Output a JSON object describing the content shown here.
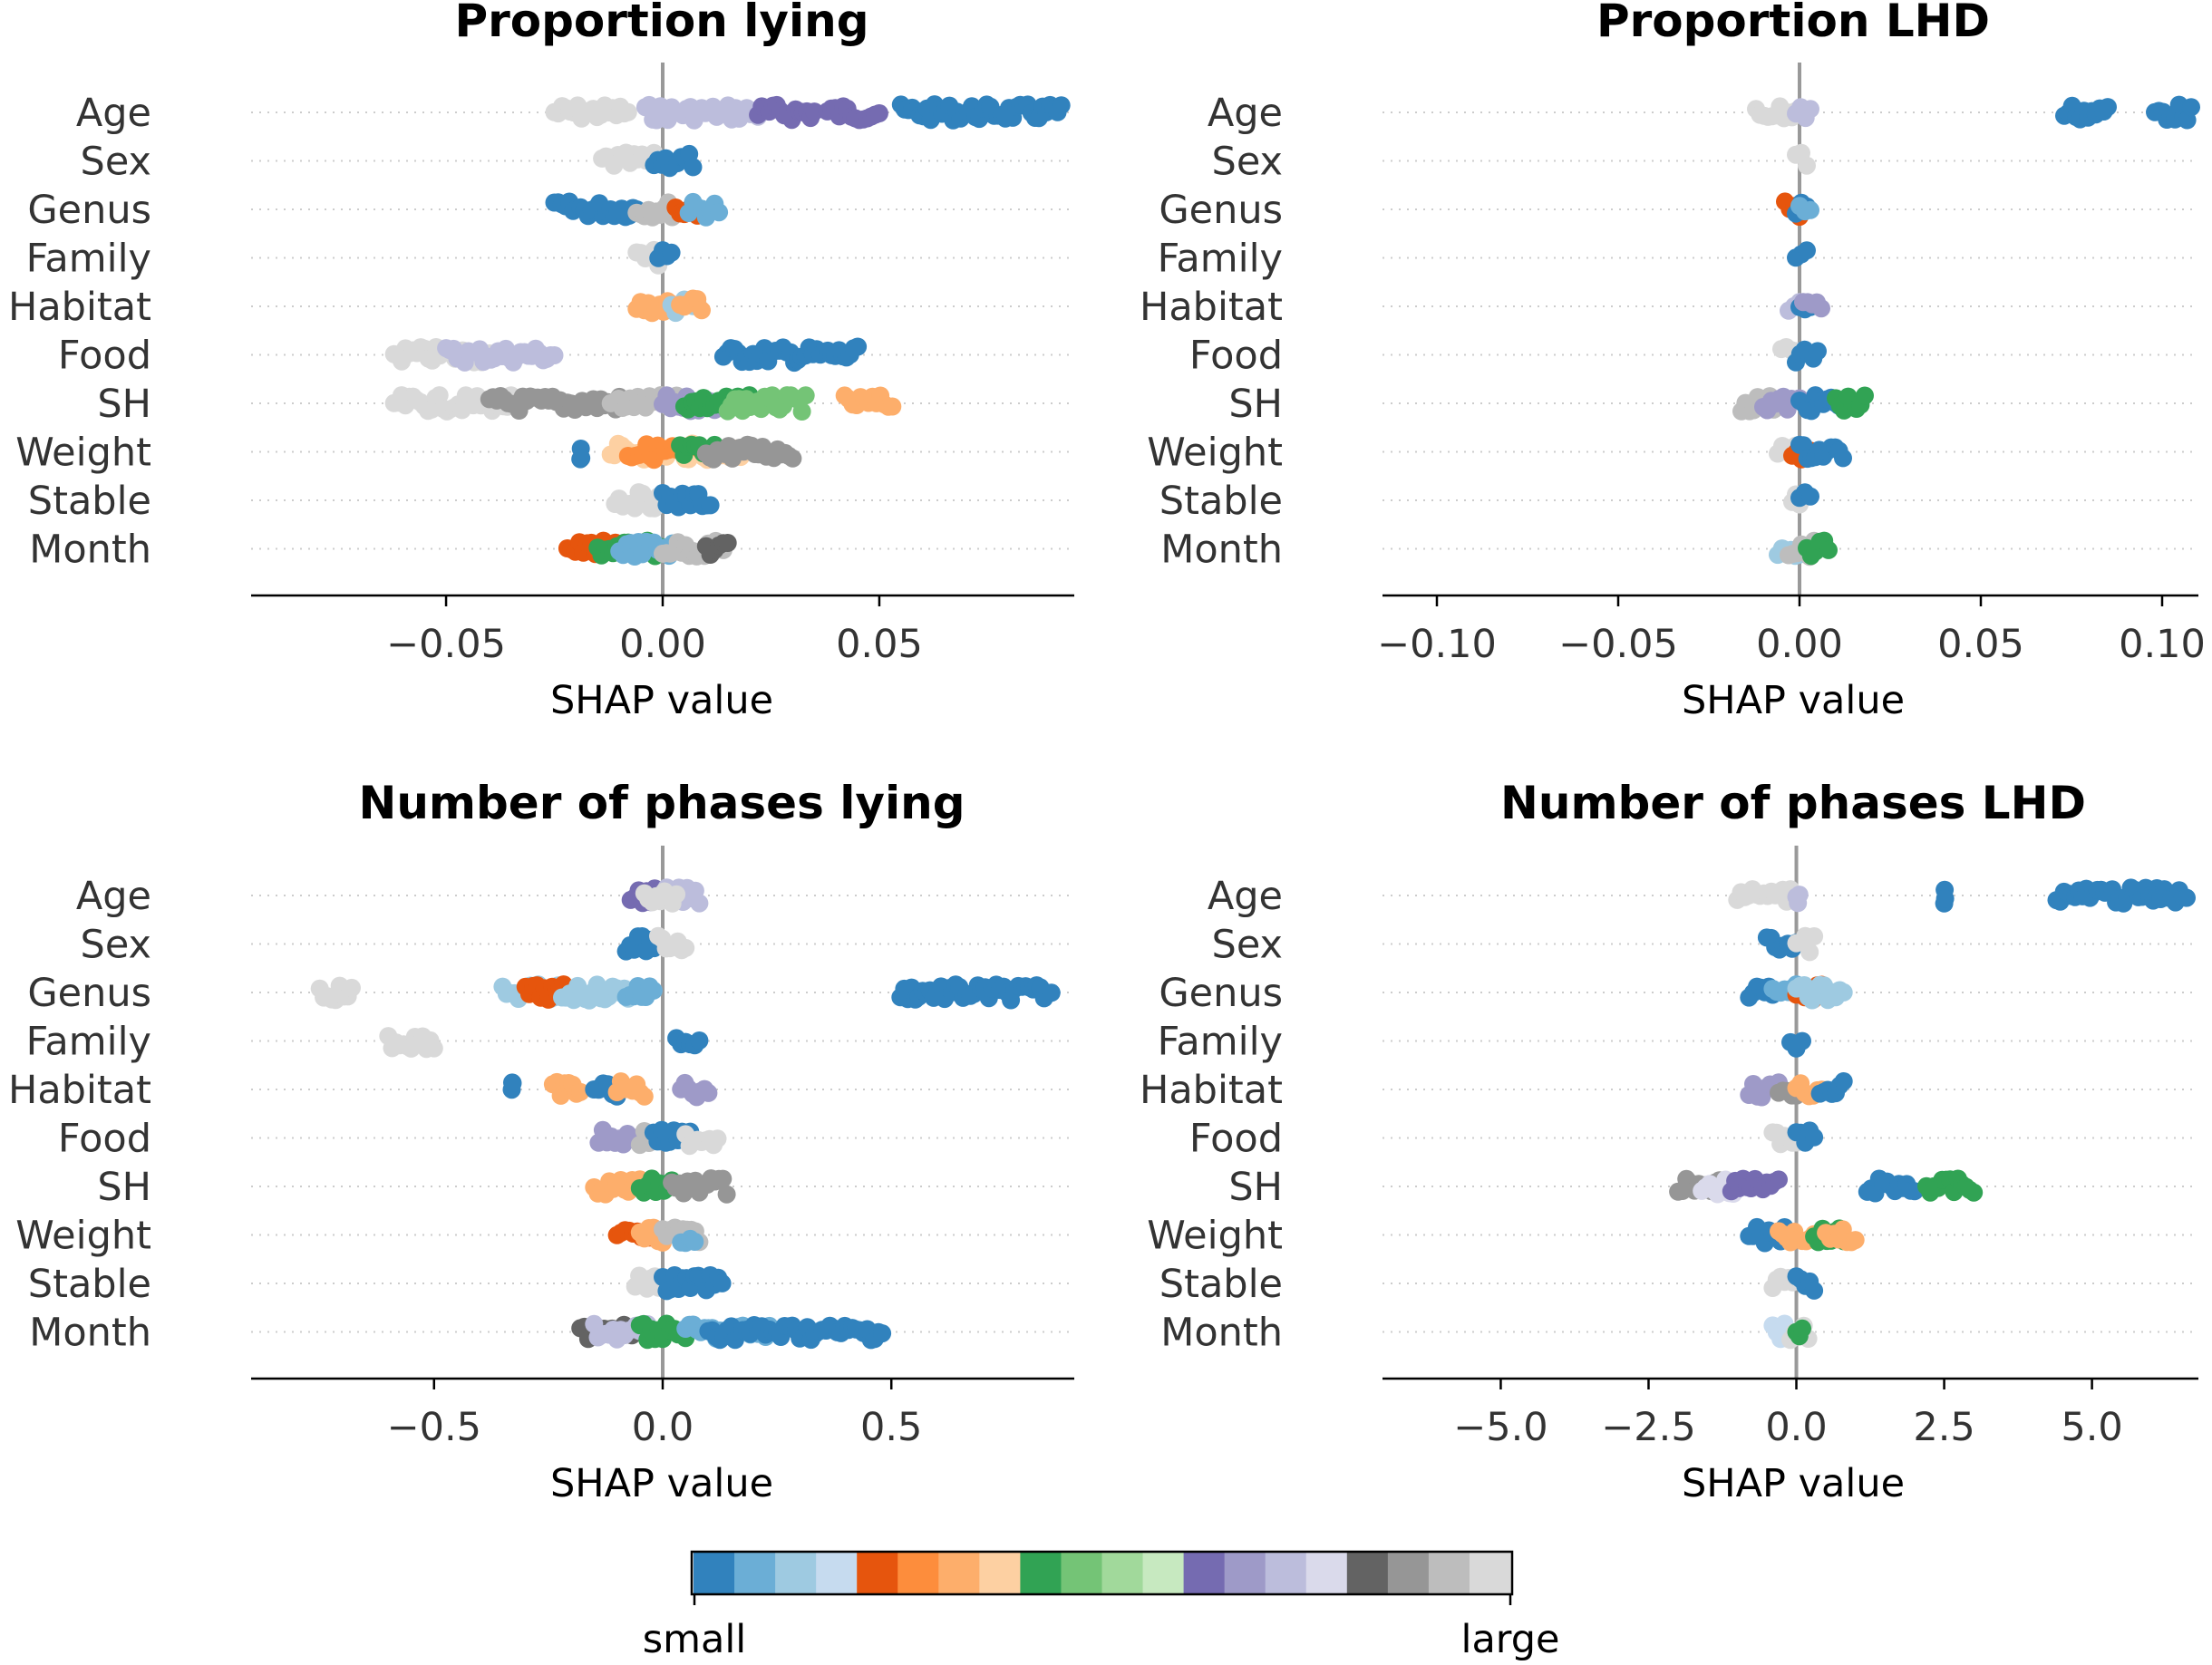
{
  "chart_data": [
    {
      "type": "scatter",
      "title": "Proportion lying",
      "xlabel": "SHAP value",
      "xlim": [
        -0.095,
        0.095
      ],
      "xticks": [
        -0.05,
        0.0,
        0.05
      ],
      "xtick_labels": [
        "−0.05",
        "0.00",
        "0.05"
      ],
      "features": [
        "Age",
        "Sex",
        "Genus",
        "Family",
        "Habitat",
        "Food",
        "SH",
        "Weight",
        "Stable",
        "Month"
      ],
      "series": [
        {
          "feature": "Age",
          "clusters": [
            [
              -0.025,
              -0.008,
              19
            ],
            [
              -0.004,
              0.022,
              14
            ],
            [
              0.022,
              0.035,
              12
            ],
            [
              0.038,
              0.05,
              12
            ],
            [
              0.055,
              0.092,
              0
            ]
          ]
        },
        {
          "feature": "Sex",
          "clusters": [
            [
              -0.014,
              -0.002,
              19
            ],
            [
              -0.002,
              0.007,
              0
            ]
          ]
        },
        {
          "feature": "Genus",
          "clusters": [
            [
              -0.025,
              -0.006,
              0
            ],
            [
              -0.006,
              0.004,
              18
            ],
            [
              0.003,
              0.008,
              4
            ],
            [
              0.006,
              0.013,
              1
            ]
          ]
        },
        {
          "feature": "Family",
          "clusters": [
            [
              -0.006,
              -0.001,
              19
            ],
            [
              -0.001,
              0.002,
              0
            ]
          ]
        },
        {
          "feature": "Habitat",
          "clusters": [
            [
              -0.006,
              0.002,
              6
            ],
            [
              0.002,
              0.008,
              2
            ],
            [
              0.004,
              0.009,
              6
            ]
          ]
        },
        {
          "feature": "Food",
          "clusters": [
            [
              -0.062,
              -0.04,
              19
            ],
            [
              -0.05,
              -0.025,
              14
            ],
            [
              0.014,
              0.045,
              0
            ]
          ]
        },
        {
          "feature": "SH",
          "clusters": [
            [
              -0.062,
              -0.035,
              19
            ],
            [
              -0.04,
              -0.01,
              17
            ],
            [
              -0.012,
              0.005,
              18
            ],
            [
              0.0,
              0.012,
              13
            ],
            [
              0.005,
              0.02,
              8
            ],
            [
              0.015,
              0.033,
              9
            ],
            [
              0.042,
              0.053,
              6
            ]
          ]
        },
        {
          "feature": "Weight",
          "clusters": [
            [
              -0.019,
              -0.019,
              0
            ],
            [
              -0.012,
              0.018,
              7
            ],
            [
              -0.008,
              0.01,
              5
            ],
            [
              0.004,
              0.012,
              8
            ],
            [
              0.01,
              0.03,
              17
            ]
          ]
        },
        {
          "feature": "Stable",
          "clusters": [
            [
              -0.011,
              -0.001,
              19
            ],
            [
              0.0,
              0.011,
              0
            ]
          ]
        },
        {
          "feature": "Month",
          "clusters": [
            [
              -0.022,
              -0.01,
              4
            ],
            [
              -0.015,
              0.0,
              8
            ],
            [
              -0.01,
              0.005,
              1
            ],
            [
              0.0,
              0.014,
              18
            ],
            [
              0.01,
              0.015,
              16
            ]
          ]
        }
      ]
    },
    {
      "type": "scatter",
      "title": "Proportion LHD",
      "xlabel": "SHAP value",
      "xlim": [
        -0.115,
        0.11
      ],
      "xticks": [
        -0.1,
        -0.05,
        0.0,
        0.05,
        0.1
      ],
      "xtick_labels": [
        "−0.10",
        "−0.05",
        "0.00",
        "0.05",
        "0.10"
      ],
      "features": [
        "Age",
        "Sex",
        "Genus",
        "Family",
        "Habitat",
        "Food",
        "SH",
        "Weight",
        "Stable",
        "Month"
      ],
      "series": [
        {
          "feature": "Age",
          "clusters": [
            [
              -0.012,
              -0.001,
              19
            ],
            [
              -0.001,
              0.003,
              14
            ],
            [
              0.073,
              0.085,
              0
            ],
            [
              0.098,
              0.108,
              0
            ]
          ]
        },
        {
          "feature": "Sex",
          "clusters": [
            [
              -0.001,
              0.002,
              19
            ]
          ]
        },
        {
          "feature": "Genus",
          "clusters": [
            [
              -0.004,
              0.0,
              4
            ],
            [
              -0.001,
              0.002,
              0
            ],
            [
              0.0,
              0.003,
              1
            ]
          ]
        },
        {
          "feature": "Family",
          "clusters": [
            [
              -0.001,
              0.002,
              0
            ]
          ]
        },
        {
          "feature": "Habitat",
          "clusters": [
            [
              -0.003,
              0.0,
              14
            ],
            [
              0.0,
              0.003,
              0
            ],
            [
              0.001,
              0.006,
              13
            ]
          ]
        },
        {
          "feature": "Food",
          "clusters": [
            [
              -0.005,
              -0.001,
              19
            ],
            [
              -0.001,
              0.005,
              0
            ]
          ]
        },
        {
          "feature": "SH",
          "clusters": [
            [
              -0.016,
              -0.006,
              18
            ],
            [
              -0.01,
              0.0,
              13
            ],
            [
              0.0,
              0.012,
              0
            ],
            [
              0.01,
              0.018,
              8
            ]
          ]
        },
        {
          "feature": "Weight",
          "clusters": [
            [
              -0.006,
              -0.001,
              19
            ],
            [
              -0.002,
              0.003,
              4
            ],
            [
              0.0,
              0.012,
              0
            ]
          ]
        },
        {
          "feature": "Stable",
          "clusters": [
            [
              -0.002,
              0.0,
              19
            ],
            [
              0.0,
              0.003,
              0
            ]
          ]
        },
        {
          "feature": "Month",
          "clusters": [
            [
              -0.006,
              0.0,
              2
            ],
            [
              -0.003,
              0.004,
              18
            ],
            [
              0.002,
              0.008,
              8
            ]
          ]
        }
      ]
    },
    {
      "type": "scatter",
      "title": "Number of phases lying",
      "xlabel": "SHAP value",
      "xlim": [
        -0.9,
        0.9
      ],
      "xticks": [
        -0.5,
        0.0,
        0.5
      ],
      "xtick_labels": [
        "−0.5",
        "0.0",
        "0.5"
      ],
      "features": [
        "Age",
        "Sex",
        "Genus",
        "Family",
        "Habitat",
        "Food",
        "SH",
        "Weight",
        "Stable",
        "Month"
      ],
      "series": [
        {
          "feature": "Age",
          "clusters": [
            [
              -0.07,
              0.0,
              12
            ],
            [
              0.0,
              0.08,
              14
            ],
            [
              -0.04,
              0.03,
              19
            ]
          ]
        },
        {
          "feature": "Sex",
          "clusters": [
            [
              -0.08,
              -0.01,
              0
            ],
            [
              -0.01,
              0.05,
              19
            ]
          ]
        },
        {
          "feature": "Genus",
          "clusters": [
            [
              -0.75,
              -0.68,
              19
            ],
            [
              -0.35,
              -0.22,
              2
            ],
            [
              -0.3,
              -0.2,
              4
            ],
            [
              -0.22,
              -0.05,
              2
            ],
            [
              -0.08,
              -0.02,
              1
            ],
            [
              0.52,
              0.85,
              0
            ]
          ]
        },
        {
          "feature": "Family",
          "clusters": [
            [
              -0.6,
              -0.5,
              19
            ],
            [
              0.03,
              0.08,
              0
            ]
          ]
        },
        {
          "feature": "Habitat",
          "clusters": [
            [
              -0.33,
              -0.33,
              0
            ],
            [
              -0.24,
              -0.18,
              6
            ],
            [
              -0.15,
              -0.1,
              0
            ],
            [
              -0.1,
              -0.04,
              6
            ],
            [
              0.04,
              0.1,
              13
            ]
          ]
        },
        {
          "feature": "Food",
          "clusters": [
            [
              -0.14,
              -0.05,
              13
            ],
            [
              -0.05,
              0.0,
              18
            ],
            [
              -0.02,
              0.06,
              0
            ],
            [
              0.05,
              0.12,
              19
            ]
          ]
        },
        {
          "feature": "SH",
          "clusters": [
            [
              -0.15,
              -0.05,
              6
            ],
            [
              -0.05,
              0.02,
              8
            ],
            [
              0.02,
              0.14,
              17
            ]
          ]
        },
        {
          "feature": "Weight",
          "clusters": [
            [
              -0.1,
              -0.02,
              4
            ],
            [
              -0.05,
              0.0,
              6
            ],
            [
              0.0,
              0.08,
              18
            ],
            [
              0.04,
              0.07,
              1
            ]
          ]
        },
        {
          "feature": "Stable",
          "clusters": [
            [
              -0.06,
              0.0,
              19
            ],
            [
              0.0,
              0.13,
              0
            ]
          ]
        },
        {
          "feature": "Month",
          "clusters": [
            [
              -0.18,
              -0.05,
              16
            ],
            [
              -0.15,
              0.0,
              14
            ],
            [
              -0.05,
              0.05,
              8
            ],
            [
              0.05,
              0.25,
              1
            ],
            [
              0.1,
              0.3,
              0
            ],
            [
              0.3,
              0.48,
              0
            ]
          ]
        }
      ]
    },
    {
      "type": "scatter",
      "title": "Number of phases LHD",
      "xlabel": "SHAP value",
      "xlim": [
        -7.0,
        6.8
      ],
      "xticks": [
        -5.0,
        -2.5,
        0.0,
        2.5,
        5.0
      ],
      "xtick_labels": [
        "−5.0",
        "−2.5",
        "0.0",
        "2.5",
        "5.0"
      ],
      "features": [
        "Age",
        "Sex",
        "Genus",
        "Family",
        "Habitat",
        "Food",
        "SH",
        "Weight",
        "Stable",
        "Month"
      ],
      "series": [
        {
          "feature": "Age",
          "clusters": [
            [
              -1.0,
              -0.1,
              19
            ],
            [
              0.0,
              0.05,
              14
            ],
            [
              2.5,
              2.5,
              0
            ],
            [
              4.4,
              6.6,
              0
            ]
          ]
        },
        {
          "feature": "Sex",
          "clusters": [
            [
              -0.5,
              0.0,
              0
            ],
            [
              0.0,
              0.3,
              19
            ]
          ]
        },
        {
          "feature": "Genus",
          "clusters": [
            [
              -0.8,
              -0.4,
              0
            ],
            [
              -0.4,
              0.0,
              1
            ],
            [
              0.0,
              0.5,
              4
            ],
            [
              0.0,
              0.8,
              2
            ]
          ]
        },
        {
          "feature": "Family",
          "clusters": [
            [
              -0.1,
              0.1,
              0
            ]
          ]
        },
        {
          "feature": "Habitat",
          "clusters": [
            [
              -0.8,
              -0.3,
              13
            ],
            [
              -0.3,
              0.0,
              17
            ],
            [
              0.0,
              0.5,
              6
            ],
            [
              0.4,
              0.8,
              0
            ]
          ]
        },
        {
          "feature": "Food",
          "clusters": [
            [
              -0.4,
              0.0,
              19
            ],
            [
              0.0,
              0.3,
              0
            ]
          ]
        },
        {
          "feature": "SH",
          "clusters": [
            [
              -2.0,
              -1.3,
              17
            ],
            [
              -1.6,
              -1.0,
              15
            ],
            [
              -1.1,
              -0.3,
              12
            ],
            [
              1.2,
              2.0,
              0
            ],
            [
              2.2,
              3.0,
              8
            ]
          ]
        },
        {
          "feature": "Weight",
          "clusters": [
            [
              -0.8,
              -0.2,
              0
            ],
            [
              -0.3,
              0.3,
              6
            ],
            [
              0.3,
              0.8,
              8
            ],
            [
              0.5,
              1.0,
              6
            ]
          ]
        },
        {
          "feature": "Stable",
          "clusters": [
            [
              -0.4,
              0.0,
              19
            ],
            [
              0.0,
              0.3,
              0
            ]
          ]
        },
        {
          "feature": "Month",
          "clusters": [
            [
              -0.4,
              0.0,
              3
            ],
            [
              -0.1,
              0.2,
              19
            ],
            [
              0.0,
              0.1,
              8
            ]
          ]
        }
      ]
    }
  ],
  "colorbar": {
    "label_low": "small",
    "label_high": "large",
    "colors": [
      "#3182bd",
      "#6baed6",
      "#9ecae1",
      "#c6dbef",
      "#e6550d",
      "#fd8d3c",
      "#fdae6b",
      "#fdd0a2",
      "#31a354",
      "#74c476",
      "#a1d99b",
      "#c7e9c0",
      "#756bb1",
      "#9e9ac8",
      "#bcbddc",
      "#dadaeb",
      "#636363",
      "#969696",
      "#bdbdbd",
      "#d9d9d9"
    ]
  },
  "colors": {
    "zero_line": "#999999",
    "grid_dots": "#cccccc",
    "axis": "#000000"
  }
}
